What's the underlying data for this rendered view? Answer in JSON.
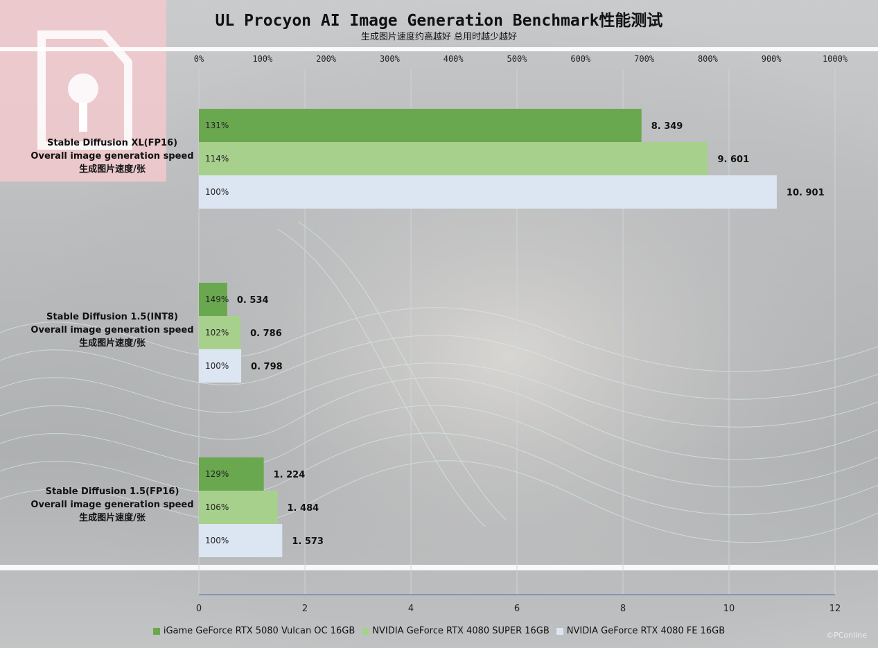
{
  "colors": {
    "series": [
      "#6aa84f",
      "#a8d08d",
      "#dce6f2"
    ],
    "grid": "#d0d4d8",
    "axis": "#4a6fa5",
    "logo": "#f2c9cc"
  },
  "watermark": "©PConline",
  "chart_data": {
    "type": "bar",
    "orientation": "horizontal",
    "title": "UL Procyon AI Image Generation Benchmark性能测试",
    "subtitle": "生成图片速度约高越好 总用时越少越好",
    "categories": [
      "Stable Diffusion XL(FP16)\nOverall image generation speed\n生成图片速度/张",
      "Stable Diffusion 1.5(INT8)\nOverall image generation speed\n生成图片速度/张",
      "Stable Diffusion 1.5(FP16)\nOverall image generation speed\n生成图片速度/张"
    ],
    "series": [
      {
        "name": "iGame GeForce RTX 5080 Vulcan OC 16GB",
        "values": [
          8.349,
          0.534,
          1.224
        ],
        "value_labels": [
          "8. 349",
          "0. 534",
          "1. 224"
        ],
        "percent_labels": [
          "131%",
          "149%",
          "129%"
        ]
      },
      {
        "name": "NVIDIA GeForce RTX 4080 SUPER 16GB",
        "values": [
          9.601,
          0.786,
          1.484
        ],
        "value_labels": [
          "9. 601",
          "0. 786",
          "1. 484"
        ],
        "percent_labels": [
          "114%",
          "102%",
          "106%"
        ]
      },
      {
        "name": "NVIDIA GeForce RTX 4080 FE 16GB",
        "values": [
          10.901,
          0.798,
          1.573
        ],
        "value_labels": [
          "10. 901",
          "0. 798",
          "1. 573"
        ],
        "percent_labels": [
          "100%",
          "100%",
          "100%"
        ]
      }
    ],
    "bottom_axis": {
      "ticks": [
        0,
        2,
        4,
        6,
        8,
        10,
        12
      ],
      "range": [
        0,
        12
      ]
    },
    "top_axis": {
      "ticks": [
        "0%",
        "100%",
        "200%",
        "300%",
        "400%",
        "500%",
        "600%",
        "700%",
        "800%",
        "900%",
        "1000%"
      ],
      "range": [
        0,
        1000
      ]
    },
    "grid": true,
    "legend_position": "bottom"
  }
}
